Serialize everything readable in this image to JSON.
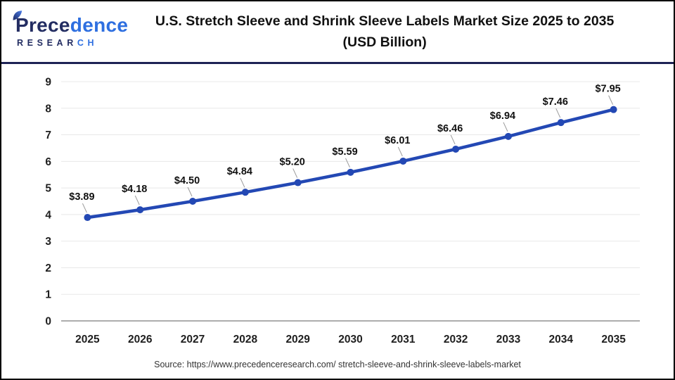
{
  "header": {
    "logo": {
      "name_part1": "Prece",
      "name_part2": "dence",
      "sub_part1": "RESEAR",
      "sub_part2": "CH"
    },
    "title_line1": "U.S. Stretch Sleeve and Shrink Sleeve Labels Market Size 2025 to 2035",
    "title_line2": "(USD Billion)"
  },
  "chart_data": {
    "type": "line",
    "title": "U.S. Stretch Sleeve and Shrink Sleeve Labels Market Size 2025 to 2035 (USD Billion)",
    "categories": [
      "2025",
      "2026",
      "2027",
      "2028",
      "2029",
      "2030",
      "2031",
      "2032",
      "2033",
      "2034",
      "2035"
    ],
    "values": [
      3.89,
      4.18,
      4.5,
      4.84,
      5.2,
      5.59,
      6.01,
      6.46,
      6.94,
      7.46,
      7.95
    ],
    "point_labels": [
      "$3.89",
      "$4.18",
      "$4.50",
      "$4.84",
      "$5.20",
      "$5.59",
      "$6.01",
      "$6.46",
      "$6.94",
      "$7.46",
      "$7.95"
    ],
    "xlabel": "",
    "ylabel": "",
    "ylim": [
      0,
      9
    ],
    "ytick_step": 1,
    "grid": true,
    "legend": "none",
    "line_color": "#2348b4",
    "marker_color": "#2348b4",
    "gridline_color": "#e8e8e8",
    "axis_line_color": "#adadad",
    "leader_color": "#999999",
    "tick_label_color": "#1f1f1f",
    "point_label_color": "#111111"
  },
  "footer": {
    "source": "Source: https://www.precedenceresearch.com/ stretch-sleeve-and-shrink-sleeve-labels-market"
  }
}
